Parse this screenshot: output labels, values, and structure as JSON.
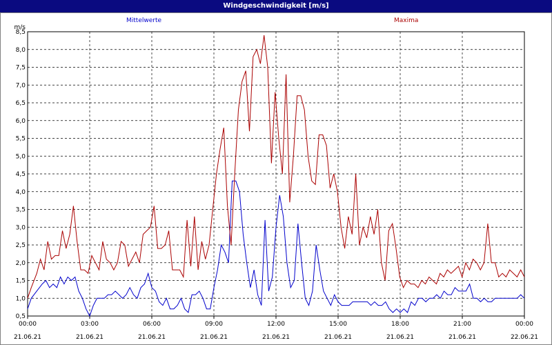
{
  "window": {
    "title": "Windgeschwindigkeit [m/s]"
  },
  "chart_data": {
    "type": "line",
    "title": "Windgeschwindigkeit [m/s]",
    "ylabel": "m/s",
    "ylim": [
      0.5,
      8.5
    ],
    "yticks": [
      "0,5",
      "1,0",
      "1,5",
      "2,0",
      "2,5",
      "3,0",
      "3,5",
      "4,0",
      "4,5",
      "5,0",
      "5,5",
      "6,0",
      "6,5",
      "7,0",
      "7,5",
      "8,0",
      "8,5"
    ],
    "xticks": [
      {
        "time": "00:00",
        "date": "21.06.21"
      },
      {
        "time": "03:00",
        "date": "21.06.21"
      },
      {
        "time": "06:00",
        "date": "21.06.21"
      },
      {
        "time": "09:00",
        "date": "21.06.21"
      },
      {
        "time": "12:00",
        "date": "21.06.21"
      },
      {
        "time": "15:00",
        "date": "21.06.21"
      },
      {
        "time": "18:00",
        "date": "21.06.21"
      },
      {
        "time": "21:00",
        "date": "21.06.21"
      },
      {
        "time": "00:00",
        "date": "22.06.21"
      }
    ],
    "xlim_hours": [
      0,
      24
    ],
    "grid": true,
    "series": [
      {
        "name": "Mittelwerte",
        "color": "#0000cc",
        "points": [
          [
            0.0,
            0.7
          ],
          [
            0.2,
            1.0
          ],
          [
            0.5,
            1.2
          ],
          [
            0.8,
            1.4
          ],
          [
            1.0,
            1.5
          ],
          [
            1.2,
            1.3
          ],
          [
            1.4,
            1.4
          ],
          [
            1.6,
            1.3
          ],
          [
            1.8,
            1.6
          ],
          [
            2.0,
            1.4
          ],
          [
            2.2,
            1.6
          ],
          [
            2.4,
            1.5
          ],
          [
            2.6,
            1.6
          ],
          [
            2.8,
            1.2
          ],
          [
            3.0,
            1.0
          ],
          [
            3.2,
            0.7
          ],
          [
            3.4,
            0.5
          ],
          [
            3.6,
            0.8
          ],
          [
            3.8,
            1.0
          ],
          [
            4.0,
            1.0
          ],
          [
            4.2,
            1.0
          ],
          [
            4.4,
            1.1
          ],
          [
            4.6,
            1.1
          ],
          [
            4.8,
            1.2
          ],
          [
            5.0,
            1.1
          ],
          [
            5.2,
            1.0
          ],
          [
            5.4,
            1.1
          ],
          [
            5.6,
            1.3
          ],
          [
            5.8,
            1.1
          ],
          [
            6.0,
            1.0
          ],
          [
            6.2,
            1.3
          ],
          [
            6.4,
            1.4
          ],
          [
            6.6,
            1.7
          ],
          [
            6.8,
            1.3
          ],
          [
            7.0,
            1.2
          ],
          [
            7.2,
            0.9
          ],
          [
            7.4,
            0.8
          ],
          [
            7.6,
            1.0
          ],
          [
            7.8,
            0.7
          ],
          [
            8.0,
            0.7
          ],
          [
            8.2,
            0.8
          ],
          [
            8.4,
            1.0
          ],
          [
            8.6,
            0.7
          ],
          [
            8.8,
            0.6
          ],
          [
            9.0,
            1.1
          ],
          [
            9.2,
            1.1
          ],
          [
            9.4,
            1.2
          ],
          [
            9.6,
            1.0
          ],
          [
            9.8,
            0.7
          ],
          [
            10.0,
            0.7
          ],
          [
            10.2,
            1.3
          ],
          [
            10.4,
            1.8
          ],
          [
            10.6,
            2.5
          ],
          [
            10.8,
            2.3
          ],
          [
            11.0,
            2.0
          ],
          [
            11.2,
            4.3
          ],
          [
            11.4,
            4.3
          ],
          [
            11.6,
            4.0
          ],
          [
            11.8,
            2.8
          ],
          [
            12.0,
            2.0
          ],
          [
            12.2,
            1.3
          ],
          [
            12.4,
            1.8
          ],
          [
            12.6,
            1.1
          ],
          [
            12.8,
            0.8
          ],
          [
            13.0,
            3.2
          ],
          [
            13.2,
            1.2
          ],
          [
            13.4,
            1.6
          ],
          [
            13.6,
            3.0
          ],
          [
            13.8,
            3.9
          ],
          [
            14.0,
            3.3
          ],
          [
            14.2,
            2.0
          ],
          [
            14.4,
            1.3
          ],
          [
            14.6,
            1.5
          ],
          [
            14.8,
            3.1
          ],
          [
            15.0,
            2.0
          ],
          [
            15.2,
            1.0
          ],
          [
            15.4,
            0.8
          ],
          [
            15.6,
            1.2
          ],
          [
            15.8,
            2.5
          ],
          [
            16.0,
            1.8
          ],
          [
            16.2,
            1.2
          ],
          [
            16.4,
            1.0
          ],
          [
            16.6,
            0.8
          ],
          [
            16.8,
            1.1
          ],
          [
            17.0,
            0.9
          ],
          [
            17.2,
            0.8
          ],
          [
            17.4,
            0.8
          ],
          [
            17.6,
            0.8
          ],
          [
            17.8,
            0.9
          ],
          [
            18.0,
            0.9
          ],
          [
            18.2,
            0.9
          ],
          [
            18.4,
            0.9
          ],
          [
            18.6,
            0.9
          ],
          [
            18.8,
            0.8
          ],
          [
            19.0,
            0.9
          ],
          [
            19.2,
            0.8
          ],
          [
            19.4,
            0.8
          ],
          [
            19.6,
            0.9
          ],
          [
            19.8,
            0.7
          ],
          [
            20.0,
            0.6
          ],
          [
            20.2,
            0.7
          ],
          [
            20.4,
            0.6
          ],
          [
            20.6,
            0.7
          ],
          [
            20.8,
            0.6
          ],
          [
            21.0,
            0.9
          ],
          [
            21.2,
            0.8
          ],
          [
            21.4,
            1.0
          ],
          [
            21.6,
            1.0
          ],
          [
            21.8,
            0.9
          ],
          [
            22.0,
            1.0
          ],
          [
            22.2,
            1.0
          ],
          [
            22.4,
            1.1
          ],
          [
            22.6,
            1.0
          ],
          [
            22.8,
            1.2
          ],
          [
            23.0,
            1.1
          ],
          [
            23.2,
            1.1
          ],
          [
            23.4,
            1.3
          ],
          [
            23.6,
            1.2
          ],
          [
            23.8,
            1.2
          ],
          [
            24.0,
            1.2
          ],
          [
            24.2,
            1.4
          ],
          [
            24.4,
            1.0
          ],
          [
            24.6,
            1.0
          ],
          [
            24.8,
            0.9
          ],
          [
            25.0,
            1.0
          ],
          [
            25.2,
            0.9
          ],
          [
            25.4,
            0.9
          ],
          [
            25.6,
            1.0
          ],
          [
            25.8,
            1.0
          ],
          [
            26.0,
            1.0
          ],
          [
            26.2,
            1.0
          ],
          [
            26.4,
            1.0
          ],
          [
            26.6,
            1.0
          ],
          [
            26.8,
            1.0
          ],
          [
            27.0,
            1.1
          ],
          [
            27.2,
            1.0
          ]
        ]
      },
      {
        "name": "Maxima",
        "color": "#aa0000",
        "points": [
          [
            0.0,
            1.0
          ],
          [
            0.2,
            1.3
          ],
          [
            0.5,
            1.7
          ],
          [
            0.7,
            2.1
          ],
          [
            0.9,
            1.8
          ],
          [
            1.1,
            2.6
          ],
          [
            1.3,
            2.1
          ],
          [
            1.5,
            2.2
          ],
          [
            1.7,
            2.2
          ],
          [
            1.9,
            2.9
          ],
          [
            2.1,
            2.4
          ],
          [
            2.3,
            2.8
          ],
          [
            2.5,
            3.6
          ],
          [
            2.7,
            2.6
          ],
          [
            2.9,
            1.8
          ],
          [
            3.1,
            1.8
          ],
          [
            3.3,
            1.7
          ],
          [
            3.5,
            2.2
          ],
          [
            3.7,
            2.0
          ],
          [
            3.9,
            1.8
          ],
          [
            4.1,
            2.6
          ],
          [
            4.3,
            2.1
          ],
          [
            4.5,
            2.0
          ],
          [
            4.7,
            1.8
          ],
          [
            4.9,
            2.0
          ],
          [
            5.1,
            2.6
          ],
          [
            5.3,
            2.5
          ],
          [
            5.5,
            1.9
          ],
          [
            5.7,
            2.1
          ],
          [
            5.9,
            2.3
          ],
          [
            6.1,
            2.0
          ],
          [
            6.3,
            2.8
          ],
          [
            6.5,
            2.9
          ],
          [
            6.7,
            3.0
          ],
          [
            6.9,
            3.6
          ],
          [
            7.1,
            2.4
          ],
          [
            7.3,
            2.4
          ],
          [
            7.5,
            2.5
          ],
          [
            7.7,
            2.9
          ],
          [
            7.9,
            1.8
          ],
          [
            8.1,
            1.8
          ],
          [
            8.3,
            1.8
          ],
          [
            8.5,
            1.6
          ],
          [
            8.7,
            3.2
          ],
          [
            8.9,
            1.9
          ],
          [
            9.1,
            3.3
          ],
          [
            9.3,
            1.8
          ],
          [
            9.5,
            2.6
          ],
          [
            9.7,
            2.1
          ],
          [
            9.9,
            2.5
          ],
          [
            10.1,
            3.5
          ],
          [
            10.3,
            4.5
          ],
          [
            10.5,
            5.2
          ],
          [
            10.7,
            5.8
          ],
          [
            10.9,
            3.6
          ],
          [
            11.1,
            2.5
          ],
          [
            11.3,
            4.5
          ],
          [
            11.5,
            6.3
          ],
          [
            11.7,
            7.1
          ],
          [
            11.9,
            7.4
          ],
          [
            12.1,
            5.7
          ],
          [
            12.3,
            7.8
          ],
          [
            12.5,
            8.0
          ],
          [
            12.7,
            7.6
          ],
          [
            12.9,
            8.4
          ],
          [
            13.1,
            7.5
          ],
          [
            13.3,
            4.8
          ],
          [
            13.5,
            6.8
          ],
          [
            13.7,
            5.5
          ],
          [
            13.9,
            4.5
          ],
          [
            14.1,
            7.3
          ],
          [
            14.3,
            3.7
          ],
          [
            14.5,
            5.0
          ],
          [
            14.7,
            6.7
          ],
          [
            14.9,
            6.7
          ],
          [
            15.1,
            6.3
          ],
          [
            15.3,
            5.0
          ],
          [
            15.5,
            4.3
          ],
          [
            15.7,
            4.2
          ],
          [
            15.9,
            5.6
          ],
          [
            16.1,
            5.6
          ],
          [
            16.3,
            5.3
          ],
          [
            16.5,
            4.1
          ],
          [
            16.7,
            4.5
          ],
          [
            16.9,
            4.0
          ],
          [
            17.1,
            3.0
          ],
          [
            17.3,
            2.4
          ],
          [
            17.5,
            3.3
          ],
          [
            17.7,
            2.8
          ],
          [
            17.9,
            4.5
          ],
          [
            18.1,
            2.5
          ],
          [
            18.3,
            3.0
          ],
          [
            18.5,
            2.7
          ],
          [
            18.7,
            3.3
          ],
          [
            18.9,
            2.8
          ],
          [
            19.1,
            3.5
          ],
          [
            19.3,
            2.0
          ],
          [
            19.5,
            1.5
          ],
          [
            19.7,
            2.9
          ],
          [
            19.9,
            3.1
          ],
          [
            20.1,
            2.4
          ],
          [
            20.3,
            1.6
          ],
          [
            20.5,
            1.3
          ],
          [
            20.7,
            1.5
          ],
          [
            20.9,
            1.4
          ],
          [
            21.1,
            1.4
          ],
          [
            21.3,
            1.3
          ],
          [
            21.5,
            1.5
          ],
          [
            21.7,
            1.4
          ],
          [
            21.9,
            1.6
          ],
          [
            22.1,
            1.5
          ],
          [
            22.3,
            1.4
          ],
          [
            22.5,
            1.7
          ],
          [
            22.7,
            1.6
          ],
          [
            22.9,
            1.8
          ],
          [
            23.1,
            1.7
          ],
          [
            23.3,
            1.8
          ],
          [
            23.5,
            1.9
          ],
          [
            23.7,
            1.6
          ],
          [
            23.9,
            2.0
          ],
          [
            24.1,
            1.8
          ],
          [
            24.3,
            2.1
          ],
          [
            24.5,
            2.0
          ],
          [
            24.7,
            1.8
          ],
          [
            24.9,
            2.0
          ],
          [
            25.1,
            3.1
          ],
          [
            25.3,
            2.0
          ],
          [
            25.5,
            2.0
          ],
          [
            25.7,
            1.6
          ],
          [
            25.9,
            1.7
          ],
          [
            26.1,
            1.6
          ],
          [
            26.3,
            1.8
          ],
          [
            26.5,
            1.7
          ],
          [
            26.7,
            1.6
          ],
          [
            26.9,
            1.8
          ],
          [
            27.1,
            1.6
          ]
        ]
      }
    ]
  }
}
